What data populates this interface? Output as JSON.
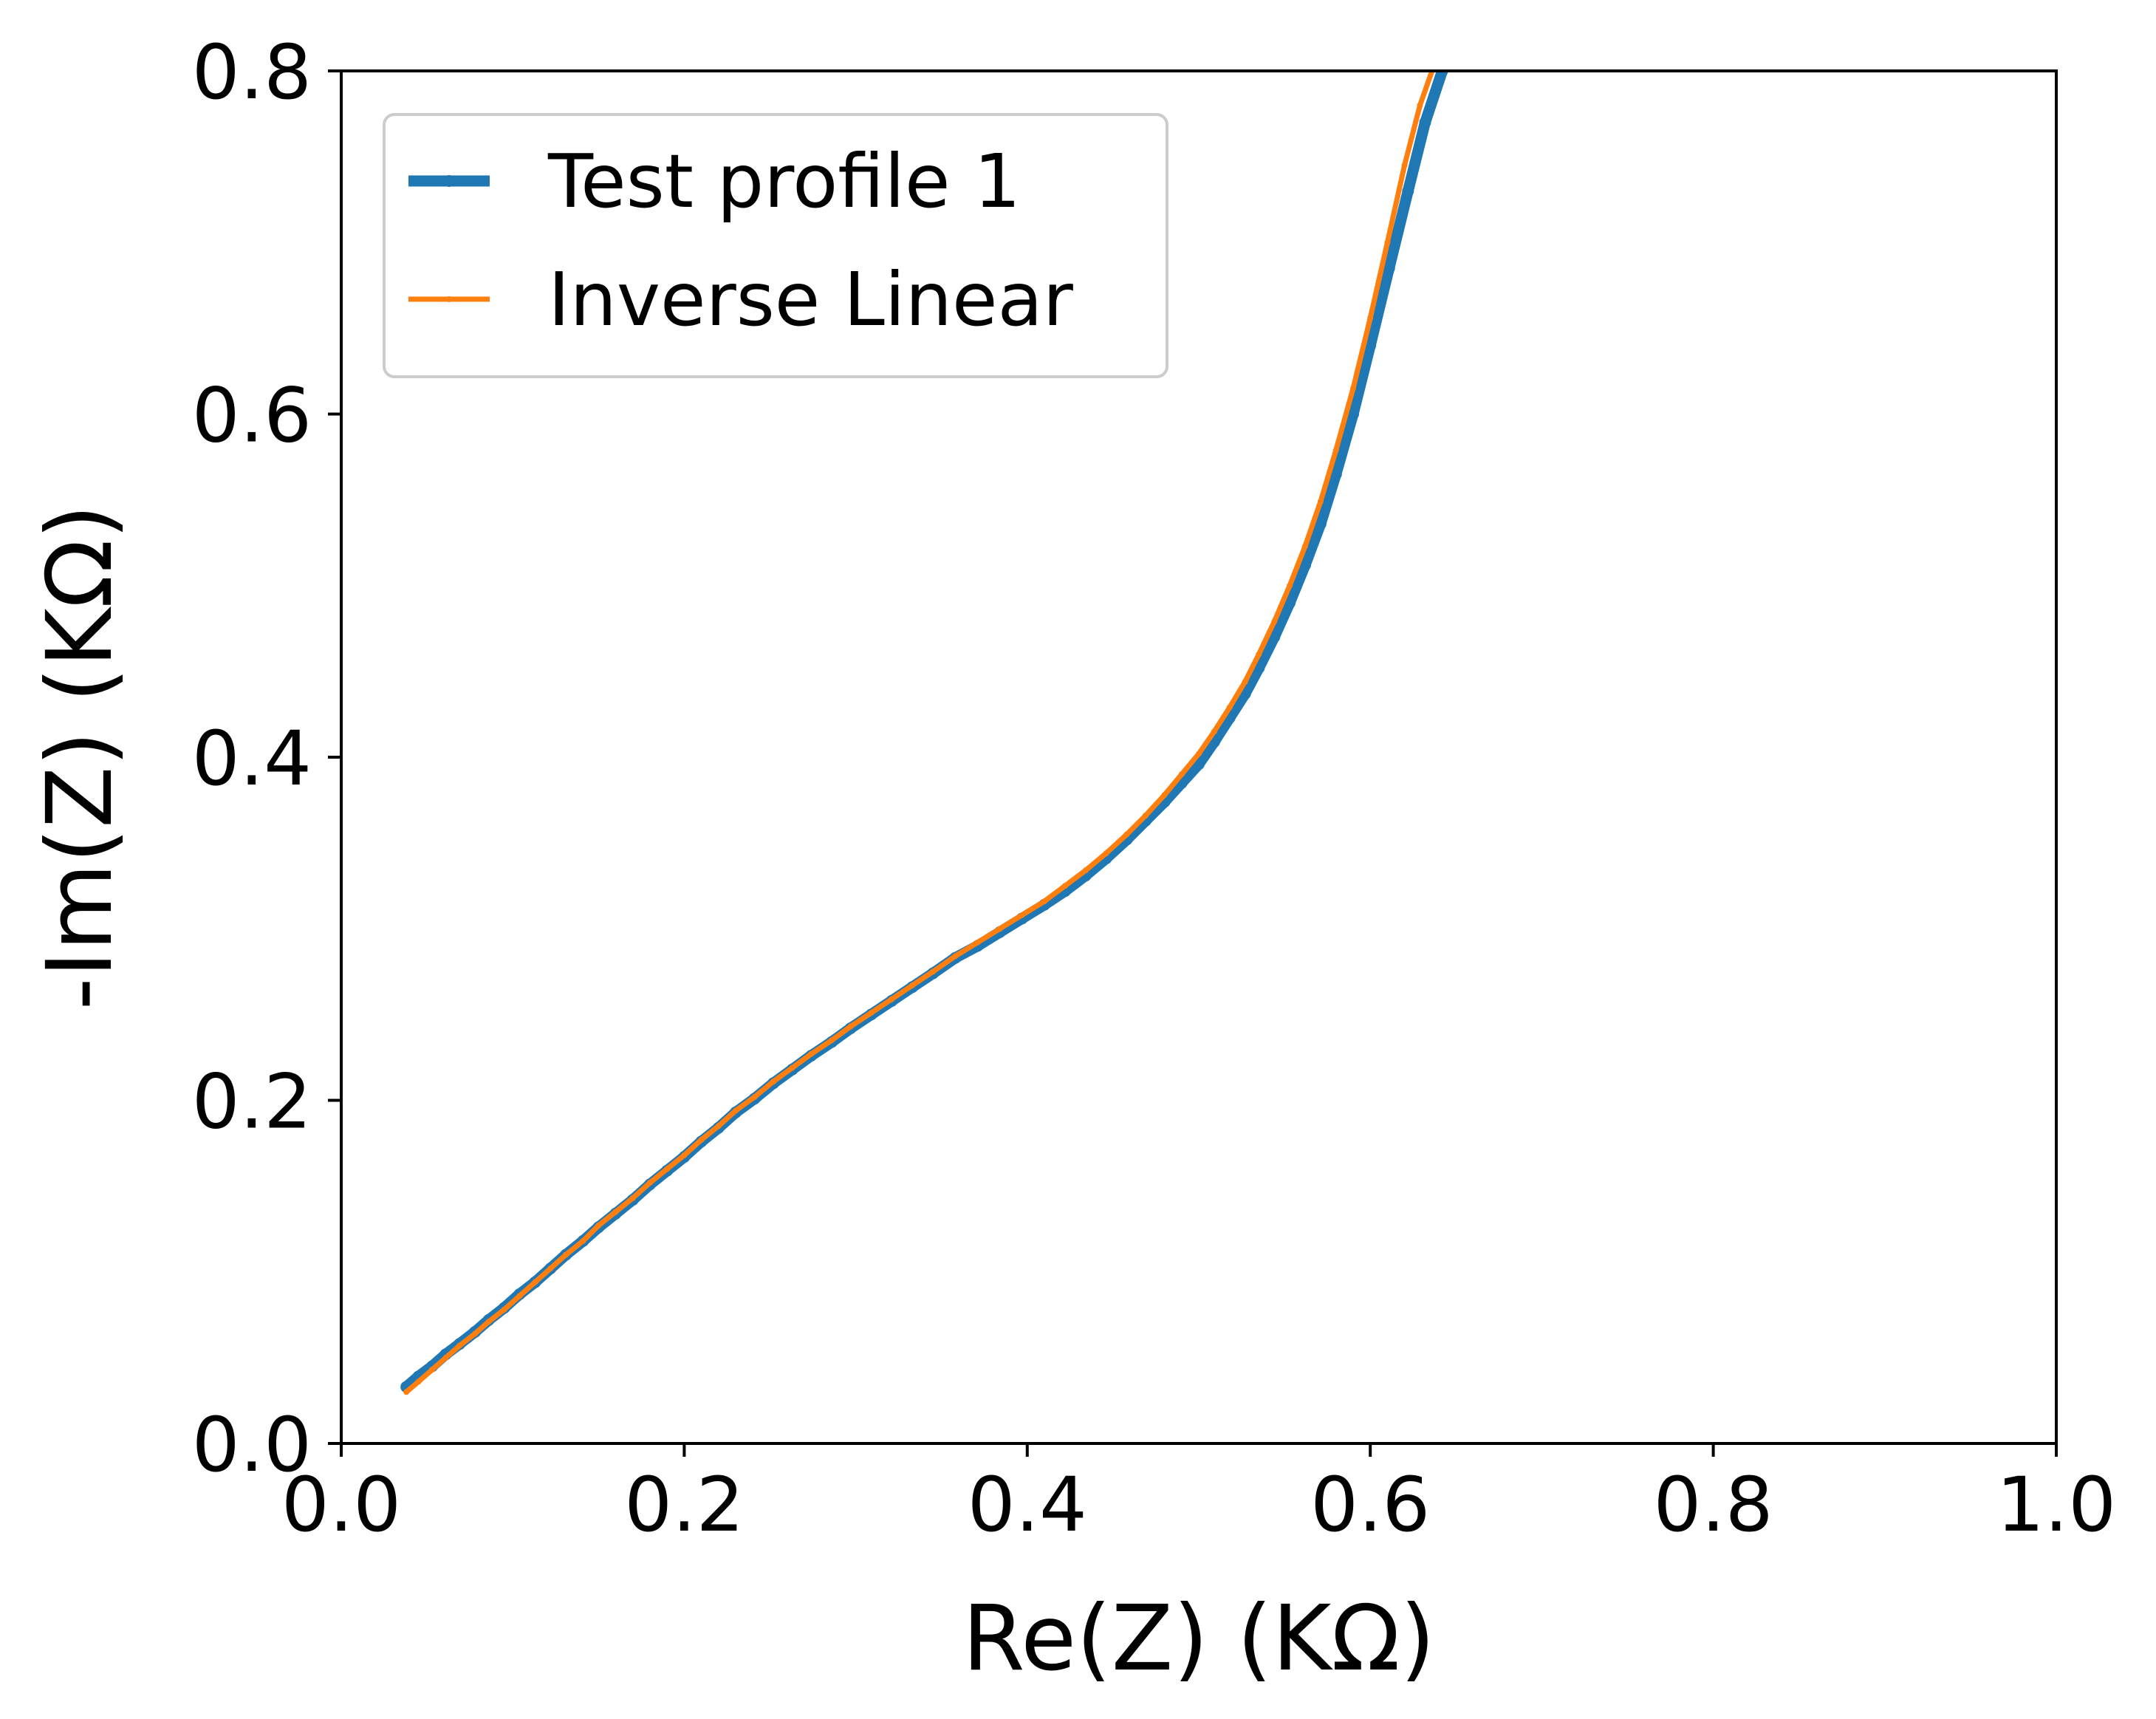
{
  "chart_data": {
    "type": "line",
    "title": "",
    "xlabel": "Re(Z) (KΩ)",
    "ylabel": "-Im(Z) (KΩ)",
    "xlim": [
      0.0,
      1.0
    ],
    "ylim": [
      0.0,
      0.8
    ],
    "xticks": [
      "0.0",
      "0.2",
      "0.4",
      "0.6",
      "0.8",
      "1.0"
    ],
    "yticks": [
      "0.0",
      "0.2",
      "0.4",
      "0.6",
      "0.8"
    ],
    "grid": false,
    "legend_position": "top-left",
    "series": [
      {
        "name": "Test profile 1",
        "color": "#1f77b4",
        "marker": "dot",
        "points": [
          [
            0.038,
            0.033
          ],
          [
            0.045,
            0.039
          ],
          [
            0.053,
            0.045
          ],
          [
            0.061,
            0.052
          ],
          [
            0.069,
            0.058
          ],
          [
            0.078,
            0.065
          ],
          [
            0.086,
            0.072
          ],
          [
            0.095,
            0.079
          ],
          [
            0.104,
            0.087
          ],
          [
            0.113,
            0.094
          ],
          [
            0.122,
            0.102
          ],
          [
            0.131,
            0.11
          ],
          [
            0.141,
            0.118
          ],
          [
            0.15,
            0.126
          ],
          [
            0.16,
            0.134
          ],
          [
            0.17,
            0.142
          ],
          [
            0.18,
            0.151
          ],
          [
            0.19,
            0.159
          ],
          [
            0.2,
            0.167
          ],
          [
            0.21,
            0.176
          ],
          [
            0.22,
            0.184
          ],
          [
            0.23,
            0.193
          ],
          [
            0.241,
            0.201
          ],
          [
            0.252,
            0.21
          ],
          [
            0.263,
            0.218
          ],
          [
            0.274,
            0.226
          ],
          [
            0.286,
            0.234
          ],
          [
            0.297,
            0.242
          ],
          [
            0.309,
            0.25
          ],
          [
            0.321,
            0.258
          ],
          [
            0.333,
            0.266
          ],
          [
            0.345,
            0.274
          ],
          [
            0.358,
            0.283
          ],
          [
            0.371,
            0.29
          ],
          [
            0.384,
            0.298
          ],
          [
            0.397,
            0.306
          ],
          [
            0.41,
            0.314
          ],
          [
            0.422,
            0.322
          ],
          [
            0.434,
            0.331
          ],
          [
            0.446,
            0.341
          ],
          [
            0.458,
            0.352
          ],
          [
            0.469,
            0.363
          ],
          [
            0.48,
            0.374
          ],
          [
            0.49,
            0.385
          ],
          [
            0.5,
            0.396
          ],
          [
            0.509,
            0.409
          ],
          [
            0.518,
            0.423
          ],
          [
            0.527,
            0.437
          ],
          [
            0.535,
            0.452
          ],
          [
            0.544,
            0.47
          ],
          [
            0.553,
            0.49
          ],
          [
            0.562,
            0.512
          ],
          [
            0.571,
            0.536
          ],
          [
            0.58,
            0.565
          ],
          [
            0.59,
            0.6
          ],
          [
            0.6,
            0.64
          ],
          [
            0.611,
            0.685
          ],
          [
            0.622,
            0.73
          ],
          [
            0.632,
            0.77
          ],
          [
            0.642,
            0.8
          ]
        ]
      },
      {
        "name": "Inverse Linear",
        "color": "#ff7f0e",
        "marker": "small-dot",
        "points": [
          [
            0.038,
            0.03
          ],
          [
            0.045,
            0.036
          ],
          [
            0.053,
            0.043
          ],
          [
            0.061,
            0.05
          ],
          [
            0.069,
            0.057
          ],
          [
            0.078,
            0.064
          ],
          [
            0.086,
            0.071
          ],
          [
            0.095,
            0.078
          ],
          [
            0.104,
            0.086
          ],
          [
            0.113,
            0.094
          ],
          [
            0.122,
            0.102
          ],
          [
            0.131,
            0.11
          ],
          [
            0.141,
            0.118
          ],
          [
            0.15,
            0.127
          ],
          [
            0.16,
            0.135
          ],
          [
            0.17,
            0.143
          ],
          [
            0.18,
            0.152
          ],
          [
            0.19,
            0.16
          ],
          [
            0.2,
            0.168
          ],
          [
            0.21,
            0.177
          ],
          [
            0.22,
            0.185
          ],
          [
            0.23,
            0.194
          ],
          [
            0.241,
            0.202
          ],
          [
            0.252,
            0.211
          ],
          [
            0.263,
            0.219
          ],
          [
            0.274,
            0.227
          ],
          [
            0.286,
            0.235
          ],
          [
            0.297,
            0.243
          ],
          [
            0.309,
            0.251
          ],
          [
            0.321,
            0.259
          ],
          [
            0.333,
            0.267
          ],
          [
            0.345,
            0.275
          ],
          [
            0.358,
            0.284
          ],
          [
            0.371,
            0.292
          ],
          [
            0.384,
            0.3
          ],
          [
            0.397,
            0.308
          ],
          [
            0.41,
            0.316
          ],
          [
            0.422,
            0.325
          ],
          [
            0.434,
            0.334
          ],
          [
            0.446,
            0.344
          ],
          [
            0.458,
            0.355
          ],
          [
            0.469,
            0.366
          ],
          [
            0.48,
            0.378
          ],
          [
            0.49,
            0.39
          ],
          [
            0.5,
            0.402
          ],
          [
            0.509,
            0.415
          ],
          [
            0.518,
            0.429
          ],
          [
            0.527,
            0.444
          ],
          [
            0.535,
            0.46
          ],
          [
            0.544,
            0.479
          ],
          [
            0.553,
            0.5
          ],
          [
            0.562,
            0.523
          ],
          [
            0.571,
            0.549
          ],
          [
            0.58,
            0.579
          ],
          [
            0.59,
            0.615
          ],
          [
            0.6,
            0.656
          ],
          [
            0.61,
            0.7
          ],
          [
            0.62,
            0.745
          ],
          [
            0.629,
            0.78
          ],
          [
            0.636,
            0.8
          ]
        ]
      }
    ]
  }
}
